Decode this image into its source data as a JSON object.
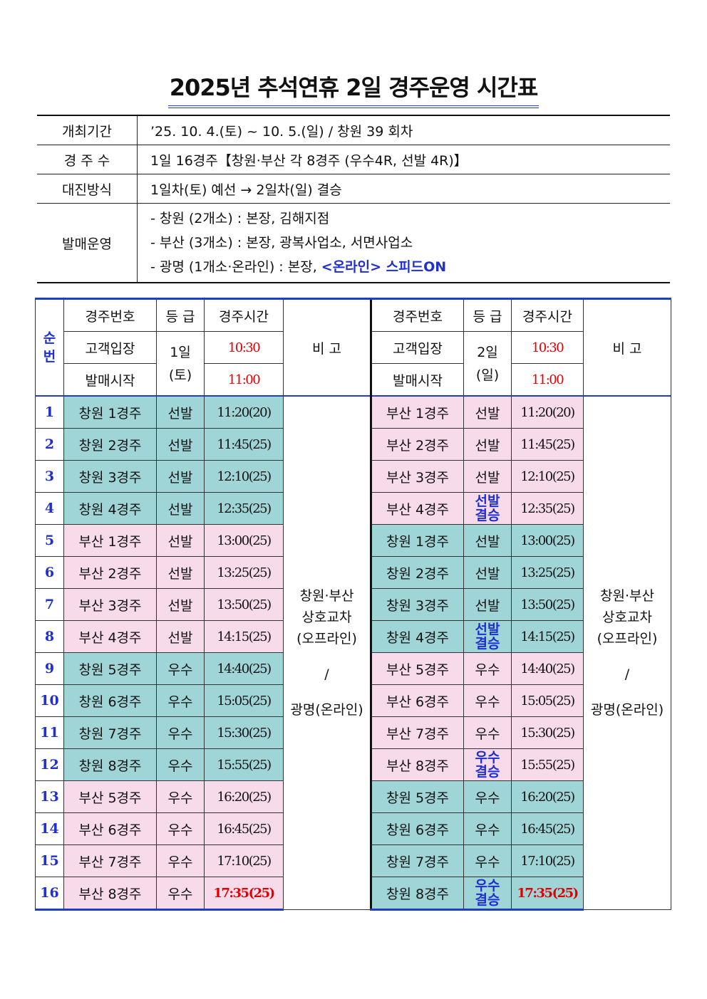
{
  "title": "2025년 추석연휴 2일 경주운영 시간표",
  "info": {
    "period_label": "개최기간",
    "period_value": "’25. 10. 4.(토) ~ 10. 5.(일) / 창원 39 회차",
    "races_label": "경 주 수",
    "races_value": "1일 16경주【창원·부산 각 8경주 (우수4R, 선발 4R)】",
    "format_label": "대진방식",
    "format_value": "1일차(토) 예선 → 2일차(일) 결승",
    "sales_label": "발매운영",
    "sales_lines": [
      "- 창원 (2개소) : 본장, 김해지점",
      "- 부산 (3개소) : 본장, 광복사업소, 서면사업소",
      "- 광명 (1개소·온라인) : 본장, "
    ],
    "sales_online": "<온라인> 스피드ON"
  },
  "schedule": {
    "seq_label_1": "순",
    "seq_label_2": "번",
    "col_race": "경주번호",
    "col_grade": "등 급",
    "col_time": "경주시간",
    "col_note": "비 고",
    "entry_label": "고객입장",
    "sales_start_label": "발매시작",
    "day1": {
      "day": "1일",
      "weekday": "(토)",
      "entry_time": "10:30",
      "sales_time": "11:00"
    },
    "day2": {
      "day": "2일",
      "weekday": "(일)",
      "entry_time": "10:30",
      "sales_time": "11:00"
    },
    "note": [
      "창원·부산",
      "상호교차",
      "(오프라인)",
      "/",
      "광명(온라인)"
    ],
    "rows": [
      {
        "no": "1",
        "d1_race": "창원 1경주",
        "d1_grade": "선발",
        "d1_time": "11:20(20)",
        "d2_race": "부산 1경주",
        "d2_grade": "선발",
        "d2_grade2": "",
        "d2_time": "11:20(20)"
      },
      {
        "no": "2",
        "d1_race": "창원 2경주",
        "d1_grade": "선발",
        "d1_time": "11:45(25)",
        "d2_race": "부산 2경주",
        "d2_grade": "선발",
        "d2_grade2": "",
        "d2_time": "11:45(25)"
      },
      {
        "no": "3",
        "d1_race": "창원 3경주",
        "d1_grade": "선발",
        "d1_time": "12:10(25)",
        "d2_race": "부산 3경주",
        "d2_grade": "선발",
        "d2_grade2": "",
        "d2_time": "12:10(25)"
      },
      {
        "no": "4",
        "d1_race": "창원 4경주",
        "d1_grade": "선발",
        "d1_time": "12:35(25)",
        "d2_race": "부산 4경주",
        "d2_grade": "선발",
        "d2_grade2": "결승",
        "d2_time": "12:35(25)"
      },
      {
        "no": "5",
        "d1_race": "부산 1경주",
        "d1_grade": "선발",
        "d1_time": "13:00(25)",
        "d2_race": "창원 1경주",
        "d2_grade": "선발",
        "d2_grade2": "",
        "d2_time": "13:00(25)"
      },
      {
        "no": "6",
        "d1_race": "부산 2경주",
        "d1_grade": "선발",
        "d1_time": "13:25(25)",
        "d2_race": "창원 2경주",
        "d2_grade": "선발",
        "d2_grade2": "",
        "d2_time": "13:25(25)"
      },
      {
        "no": "7",
        "d1_race": "부산 3경주",
        "d1_grade": "선발",
        "d1_time": "13:50(25)",
        "d2_race": "창원 3경주",
        "d2_grade": "선발",
        "d2_grade2": "",
        "d2_time": "13:50(25)"
      },
      {
        "no": "8",
        "d1_race": "부산 4경주",
        "d1_grade": "선발",
        "d1_time": "14:15(25)",
        "d2_race": "창원 4경주",
        "d2_grade": "선발",
        "d2_grade2": "결승",
        "d2_time": "14:15(25)"
      },
      {
        "no": "9",
        "d1_race": "창원 5경주",
        "d1_grade": "우수",
        "d1_time": "14:40(25)",
        "d2_race": "부산 5경주",
        "d2_grade": "우수",
        "d2_grade2": "",
        "d2_time": "14:40(25)"
      },
      {
        "no": "10",
        "d1_race": "창원 6경주",
        "d1_grade": "우수",
        "d1_time": "15:05(25)",
        "d2_race": "부산 6경주",
        "d2_grade": "우수",
        "d2_grade2": "",
        "d2_time": "15:05(25)"
      },
      {
        "no": "11",
        "d1_race": "창원 7경주",
        "d1_grade": "우수",
        "d1_time": "15:30(25)",
        "d2_race": "부산 7경주",
        "d2_grade": "우수",
        "d2_grade2": "",
        "d2_time": "15:30(25)"
      },
      {
        "no": "12",
        "d1_race": "창원 8경주",
        "d1_grade": "우수",
        "d1_time": "15:55(25)",
        "d2_race": "부산 8경주",
        "d2_grade": "우수",
        "d2_grade2": "결승",
        "d2_time": "15:55(25)"
      },
      {
        "no": "13",
        "d1_race": "부산 5경주",
        "d1_grade": "우수",
        "d1_time": "16:20(25)",
        "d2_race": "창원 5경주",
        "d2_grade": "우수",
        "d2_grade2": "",
        "d2_time": "16:20(25)"
      },
      {
        "no": "14",
        "d1_race": "부산 6경주",
        "d1_grade": "우수",
        "d1_time": "16:45(25)",
        "d2_race": "창원 6경주",
        "d2_grade": "우수",
        "d2_grade2": "",
        "d2_time": "16:45(25)"
      },
      {
        "no": "15",
        "d1_race": "부산 7경주",
        "d1_grade": "우수",
        "d1_time": "17:10(25)",
        "d2_race": "창원 7경주",
        "d2_grade": "우수",
        "d2_grade2": "",
        "d2_time": "17:10(25)"
      },
      {
        "no": "16",
        "d1_race": "부산 8경주",
        "d1_grade": "우수",
        "d1_time": "17:35(25)",
        "d2_race": "창원 8경주",
        "d2_grade": "우수",
        "d2_grade2": "결승",
        "d2_time": "17:35(25)"
      }
    ]
  },
  "colors": {
    "changwon_cell": "#9fd5d6",
    "busan_cell": "#f7dbea",
    "accent_blue": "#1f2fd0",
    "accent_red": "#e10000"
  }
}
